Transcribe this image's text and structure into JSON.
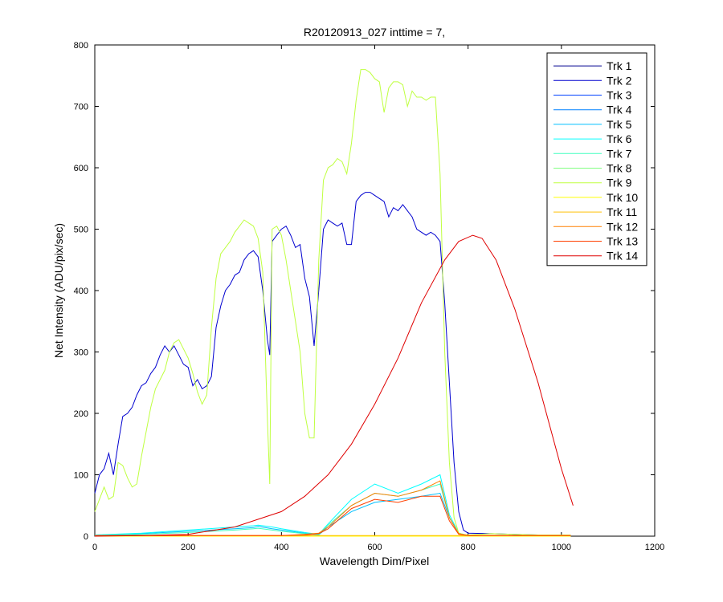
{
  "chart_data": {
    "type": "line",
    "title": "R20120913_027 inttime = 7,",
    "xlabel": "Wavelength Dim/Pixel",
    "ylabel": "Net Intensity (ADU/pix/sec)",
    "xlim": [
      0,
      1200
    ],
    "ylim": [
      0,
      800
    ],
    "xticks": [
      0,
      200,
      400,
      600,
      800,
      1000,
      1200
    ],
    "yticks": [
      0,
      100,
      200,
      300,
      400,
      500,
      600,
      700,
      800
    ],
    "grid": false,
    "legend_position": "top-right",
    "series": [
      {
        "name": "Trk 1",
        "color": "#00008f",
        "x": [
          0,
          1020
        ],
        "y": [
          0,
          0
        ]
      },
      {
        "name": "Trk 2",
        "color": "#0000cf",
        "x": [
          0,
          10,
          20,
          30,
          40,
          50,
          60,
          70,
          80,
          90,
          100,
          110,
          120,
          130,
          140,
          150,
          160,
          170,
          180,
          190,
          200,
          210,
          220,
          230,
          240,
          250,
          260,
          270,
          280,
          290,
          300,
          310,
          320,
          330,
          340,
          350,
          360,
          370,
          375,
          380,
          390,
          400,
          410,
          420,
          430,
          440,
          450,
          460,
          470,
          480,
          490,
          500,
          510,
          520,
          530,
          540,
          550,
          560,
          570,
          580,
          590,
          600,
          610,
          620,
          630,
          640,
          650,
          660,
          670,
          680,
          690,
          700,
          710,
          720,
          730,
          740,
          750,
          760,
          770,
          780,
          790,
          800,
          850,
          900,
          950,
          1000,
          1020
        ],
        "y": [
          70,
          100,
          110,
          135,
          100,
          150,
          195,
          200,
          210,
          230,
          245,
          250,
          265,
          275,
          295,
          310,
          300,
          310,
          295,
          280,
          275,
          245,
          255,
          240,
          245,
          260,
          340,
          375,
          400,
          410,
          425,
          430,
          450,
          460,
          465,
          455,
          400,
          320,
          295,
          480,
          490,
          500,
          505,
          490,
          470,
          475,
          420,
          390,
          310,
          400,
          500,
          515,
          510,
          505,
          510,
          475,
          475,
          545,
          555,
          560,
          560,
          555,
          550,
          545,
          520,
          535,
          530,
          540,
          530,
          520,
          500,
          495,
          490,
          495,
          490,
          480,
          380,
          250,
          120,
          40,
          10,
          5,
          4,
          3,
          2,
          2,
          2
        ]
      },
      {
        "name": "Trk 3",
        "color": "#0040ff",
        "x": [
          0,
          1020
        ],
        "y": [
          0,
          0
        ]
      },
      {
        "name": "Trk 4",
        "color": "#0080ff",
        "x": [
          0,
          1020
        ],
        "y": [
          0,
          0
        ]
      },
      {
        "name": "Trk 5",
        "color": "#00bfff",
        "x": [
          0,
          100,
          200,
          300,
          340,
          350,
          380,
          400,
          450,
          480,
          500,
          550,
          600,
          650,
          700,
          740,
          760,
          780,
          800,
          1020
        ],
        "y": [
          2,
          4,
          8,
          12,
          14,
          16,
          12,
          10,
          5,
          2,
          15,
          40,
          55,
          60,
          65,
          70,
          30,
          5,
          1,
          1
        ]
      },
      {
        "name": "Trk 6",
        "color": "#00ffff",
        "x": [
          0,
          100,
          200,
          300,
          340,
          350,
          380,
          400,
          450,
          480,
          500,
          550,
          600,
          650,
          700,
          740,
          760,
          780,
          800,
          1020
        ],
        "y": [
          2,
          5,
          10,
          15,
          17,
          18,
          15,
          12,
          6,
          3,
          20,
          60,
          85,
          70,
          85,
          100,
          35,
          5,
          1,
          1
        ]
      },
      {
        "name": "Trk 7",
        "color": "#40ffbf",
        "x": [
          0,
          100,
          200,
          300,
          340,
          350,
          380,
          400,
          450,
          480,
          500,
          550,
          600,
          650,
          700,
          740,
          760,
          780,
          800,
          1020
        ],
        "y": [
          1,
          3,
          6,
          10,
          12,
          13,
          10,
          8,
          4,
          2,
          18,
          50,
          70,
          65,
          75,
          85,
          30,
          4,
          1,
          1
        ]
      },
      {
        "name": "Trk 8",
        "color": "#80ff80",
        "x": [
          0,
          1020
        ],
        "y": [
          0,
          0
        ]
      },
      {
        "name": "Trk 9",
        "color": "#bfff40",
        "x": [
          0,
          10,
          20,
          30,
          40,
          50,
          60,
          70,
          80,
          90,
          100,
          110,
          120,
          130,
          140,
          150,
          160,
          170,
          180,
          190,
          200,
          210,
          220,
          230,
          240,
          250,
          260,
          270,
          280,
          290,
          300,
          310,
          320,
          330,
          340,
          350,
          360,
          370,
          375,
          380,
          390,
          400,
          410,
          420,
          430,
          440,
          450,
          460,
          470,
          480,
          490,
          500,
          510,
          520,
          530,
          540,
          550,
          560,
          570,
          580,
          590,
          600,
          610,
          620,
          630,
          640,
          650,
          660,
          670,
          680,
          690,
          700,
          710,
          720,
          730,
          740,
          750,
          760,
          770,
          780,
          790,
          800,
          850,
          900,
          950,
          1000,
          1020
        ],
        "y": [
          40,
          60,
          80,
          60,
          65,
          120,
          115,
          95,
          80,
          85,
          130,
          170,
          210,
          240,
          255,
          270,
          300,
          315,
          320,
          305,
          290,
          265,
          235,
          215,
          230,
          340,
          420,
          460,
          470,
          480,
          495,
          505,
          515,
          510,
          505,
          485,
          430,
          190,
          85,
          500,
          505,
          490,
          450,
          400,
          350,
          300,
          200,
          160,
          160,
          450,
          580,
          600,
          605,
          615,
          610,
          590,
          640,
          710,
          760,
          760,
          755,
          745,
          740,
          690,
          730,
          740,
          740,
          735,
          700,
          725,
          715,
          715,
          710,
          715,
          715,
          590,
          300,
          120,
          30,
          5,
          3,
          2,
          4,
          3,
          2,
          2,
          2
        ]
      },
      {
        "name": "Trk 10",
        "color": "#ffff00",
        "x": [
          0,
          1020
        ],
        "y": [
          0,
          0
        ]
      },
      {
        "name": "Trk 11",
        "color": "#ffbf00",
        "x": [
          0,
          1020
        ],
        "y": [
          1,
          1
        ]
      },
      {
        "name": "Trk 12",
        "color": "#ff8000",
        "x": [
          0,
          400,
          450,
          480,
          500,
          550,
          600,
          650,
          700,
          740,
          760,
          780,
          800,
          1020
        ],
        "y": [
          1,
          1,
          3,
          5,
          15,
          50,
          70,
          65,
          75,
          90,
          30,
          4,
          1,
          1
        ]
      },
      {
        "name": "Trk 13",
        "color": "#ff4000",
        "x": [
          0,
          400,
          450,
          480,
          500,
          550,
          600,
          650,
          700,
          740,
          760,
          780,
          800,
          1020
        ],
        "y": [
          1,
          1,
          2,
          4,
          12,
          45,
          60,
          55,
          65,
          65,
          25,
          3,
          1,
          1
        ]
      },
      {
        "name": "Trk 14",
        "color": "#df0000",
        "x": [
          0,
          100,
          200,
          300,
          400,
          450,
          500,
          550,
          600,
          650,
          700,
          750,
          780,
          810,
          830,
          860,
          900,
          950,
          1000,
          1025
        ],
        "y": [
          0,
          1,
          3,
          15,
          40,
          65,
          100,
          150,
          215,
          290,
          380,
          450,
          480,
          490,
          485,
          450,
          370,
          250,
          110,
          50
        ]
      }
    ]
  }
}
